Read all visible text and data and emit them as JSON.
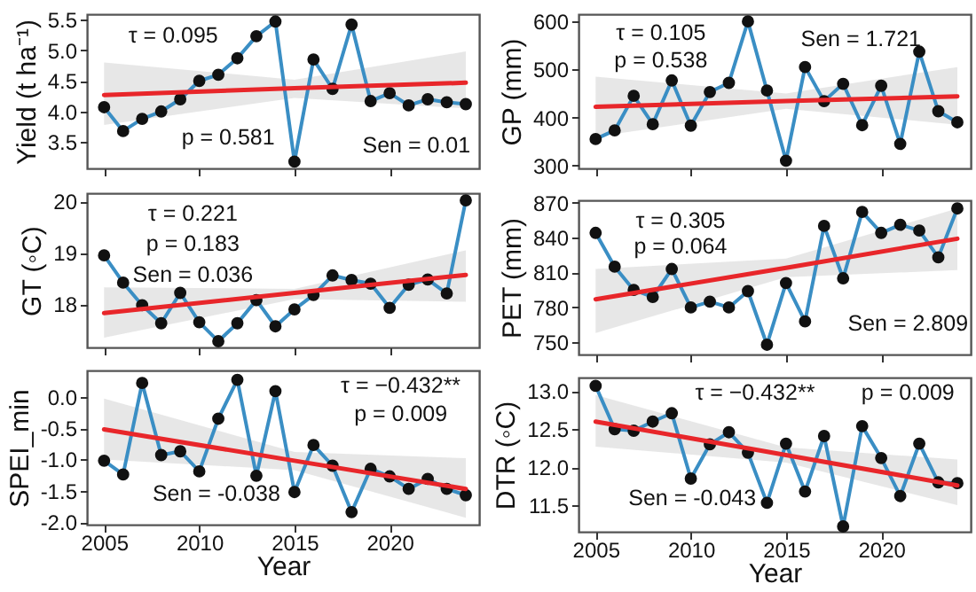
{
  "chart_data": [
    {
      "type": "line",
      "ylabel": "Yield (t ha⁻¹)",
      "x": [
        2005,
        2006,
        2007,
        2008,
        2009,
        2010,
        2011,
        2012,
        2013,
        2014,
        2015,
        2016,
        2017,
        2018,
        2019,
        2020,
        2021,
        2022,
        2023,
        2024
      ],
      "xlim": [
        2004.1,
        2024.7
      ],
      "xticks": [
        2005,
        2010,
        2015,
        2020
      ],
      "ylim": [
        3.07,
        5.59
      ],
      "yticks": [
        {
          "value": 3.5,
          "label": "3.5"
        },
        {
          "value": 4,
          "label": "4.0"
        },
        {
          "value": 4.5,
          "label": "4.5"
        },
        {
          "value": 5,
          "label": "5.0"
        },
        {
          "value": 5.5,
          "label": "5.5"
        }
      ],
      "tick_labels": "y",
      "marker": "circle",
      "annotations": [
        "τ = 0.095",
        "p = 0.581",
        "Sen = 0.01"
      ],
      "series": [
        {
          "color": "#3a8ec4",
          "values": [
            4.07,
            3.68,
            3.88,
            4.0,
            4.2,
            4.5,
            4.6,
            4.87,
            5.23,
            5.47,
            3.18,
            4.85,
            4.37,
            5.42,
            4.17,
            4.3,
            4.1,
            4.2,
            4.15,
            4.12
          ]
        },
        {
          "type": "line",
          "color": "#e8262a",
          "marker": "none",
          "x": [
            2005,
            2015,
            2024
          ],
          "values": [
            4.27,
            4.38,
            4.47
          ],
          "lower": [
            3.78,
            4.22,
            4.05
          ],
          "upper": [
            4.8,
            4.52,
            4.98
          ]
        }
      ]
    },
    {
      "type": "line",
      "ylabel": "GP (mm)",
      "x": [
        2005,
        2006,
        2007,
        2008,
        2009,
        2010,
        2011,
        2012,
        2013,
        2014,
        2015,
        2016,
        2017,
        2018,
        2019,
        2020,
        2021,
        2022,
        2023,
        2024
      ],
      "xlim": [
        2004.1,
        2024.7
      ],
      "xticks": [
        2005,
        2010,
        2015,
        2020
      ],
      "ylim": [
        294,
        615
      ],
      "yticks": [
        300,
        400,
        500,
        600
      ],
      "tick_labels": "y",
      "marker": "circle",
      "annotations": [
        "τ = 0.105",
        "p = 0.538",
        "Sen = 1.721"
      ],
      "series": [
        {
          "color": "#3a8ec4",
          "values": [
            355,
            373,
            445,
            386,
            477,
            383,
            453,
            472,
            600,
            456,
            310,
            505,
            434,
            470,
            384,
            466,
            345,
            537,
            413,
            390
          ]
        },
        {
          "type": "line",
          "color": "#e8262a",
          "marker": "none",
          "x": [
            2005,
            2015,
            2024
          ],
          "values": [
            422,
            434,
            444
          ],
          "lower": [
            360,
            418,
            385
          ],
          "upper": [
            485,
            450,
            505
          ]
        }
      ]
    },
    {
      "type": "line",
      "ylabel": "GT (◦C)",
      "x": [
        2005,
        2006,
        2007,
        2008,
        2009,
        2010,
        2011,
        2012,
        2013,
        2014,
        2015,
        2016,
        2017,
        2018,
        2019,
        2020,
        2021,
        2022,
        2023,
        2024
      ],
      "xlim": [
        2004.1,
        2024.7
      ],
      "xticks": [
        2005,
        2010,
        2015,
        2020
      ],
      "ylim": [
        17.16,
        20.16
      ],
      "yticks": [
        18,
        19,
        20
      ],
      "tick_labels": "y",
      "marker": "circle",
      "annotations": [
        "τ = 0.221",
        "p = 0.183",
        "Sen = 0.036"
      ],
      "series": [
        {
          "color": "#3a8ec4",
          "values": [
            18.95,
            18.42,
            17.98,
            17.63,
            18.22,
            17.65,
            17.28,
            17.63,
            18.08,
            17.57,
            17.9,
            18.18,
            18.56,
            18.47,
            18.4,
            17.93,
            18.38,
            18.48,
            18.21,
            20.02
          ]
        },
        {
          "type": "line",
          "color": "#e8262a",
          "marker": "none",
          "x": [
            2005,
            2015,
            2024
          ],
          "values": [
            17.83,
            18.22,
            18.57
          ],
          "lower": [
            17.35,
            18.1,
            18.05
          ],
          "upper": [
            18.33,
            18.3,
            19.05
          ]
        }
      ]
    },
    {
      "type": "line",
      "ylabel": "PET (mm)",
      "x": [
        2005,
        2006,
        2007,
        2008,
        2009,
        2010,
        2011,
        2012,
        2013,
        2014,
        2015,
        2016,
        2017,
        2018,
        2019,
        2020,
        2021,
        2022,
        2023,
        2024
      ],
      "xlim": [
        2004.1,
        2024.7
      ],
      "xticks": [
        2005,
        2010,
        2015,
        2020
      ],
      "ylim": [
        739.6,
        872
      ],
      "yticks": [
        750,
        780,
        810,
        840,
        870
      ],
      "tick_labels": "y",
      "marker": "circle",
      "annotations": [
        "τ = 0.305",
        "p = 0.064",
        "Sen = 2.809"
      ],
      "series": [
        {
          "color": "#3a8ec4",
          "values": [
            844,
            815,
            795,
            789,
            813,
            780,
            785,
            780,
            794,
            748,
            801,
            768,
            850,
            805,
            862,
            844,
            851,
            846,
            823,
            865
          ]
        },
        {
          "type": "line",
          "color": "#e8262a",
          "marker": "none",
          "x": [
            2005,
            2015,
            2024
          ],
          "values": [
            787,
            814,
            839
          ],
          "lower": [
            758,
            806,
            812
          ],
          "upper": [
            813,
            822,
            865
          ]
        }
      ]
    },
    {
      "type": "line",
      "xlabel": "Year",
      "ylabel": "SPEI_min",
      "x": [
        2005,
        2006,
        2007,
        2008,
        2009,
        2010,
        2011,
        2012,
        2013,
        2014,
        2015,
        2016,
        2017,
        2018,
        2019,
        2020,
        2021,
        2022,
        2023,
        2024
      ],
      "xlim": [
        2004.1,
        2024.7
      ],
      "xticks": [
        2005,
        2010,
        2015,
        2020
      ],
      "ylim": [
        -2.04,
        0.42
      ],
      "yticks": [
        {
          "value": -2,
          "label": "-2.0"
        },
        {
          "value": -1.5,
          "label": "-1.5"
        },
        {
          "value": -1,
          "label": "-1.0"
        },
        {
          "value": -0.5,
          "label": "-0.5"
        },
        {
          "value": 0,
          "label": "0.0"
        }
      ],
      "marker": "circle",
      "annotations": [
        "τ = −0.432**",
        "p = 0.009",
        "Sen = -0.038"
      ],
      "series": [
        {
          "color": "#3a8ec4",
          "values": [
            -1.02,
            -1.24,
            0.22,
            -0.93,
            -0.87,
            -1.19,
            -0.35,
            0.27,
            -1.26,
            0.09,
            -1.52,
            -0.77,
            -1.1,
            -1.84,
            -1.15,
            -1.27,
            -1.47,
            -1.31,
            -1.47,
            -1.57
          ]
        },
        {
          "type": "line",
          "color": "#e8262a",
          "marker": "none",
          "x": [
            2005,
            2015,
            2024
          ],
          "values": [
            -0.52,
            -1.02,
            -1.47
          ],
          "lower": [
            -1.0,
            -1.17,
            -1.93
          ],
          "upper": [
            -0.03,
            -0.88,
            -0.98
          ]
        }
      ]
    },
    {
      "type": "line",
      "xlabel": "Year",
      "ylabel": "DTR (◦C)",
      "x": [
        2005,
        2006,
        2007,
        2008,
        2009,
        2010,
        2011,
        2012,
        2013,
        2014,
        2015,
        2016,
        2017,
        2018,
        2019,
        2020,
        2021,
        2022,
        2023,
        2024
      ],
      "xlim": [
        2004.1,
        2024.7
      ],
      "xticks": [
        2005,
        2010,
        2015,
        2020
      ],
      "ylim": [
        11.15,
        13.18
      ],
      "yticks": [
        {
          "value": 11.5,
          "label": "11.5"
        },
        {
          "value": 12,
          "label": "12.0"
        },
        {
          "value": 12.5,
          "label": "12.5"
        },
        {
          "value": 13,
          "label": "13.0"
        }
      ],
      "marker": "circle",
      "annotations": [
        "τ = −0.432**",
        "p = 0.009",
        "Sen = -0.043"
      ],
      "series": [
        {
          "color": "#3a8ec4",
          "values": [
            13.07,
            12.5,
            12.48,
            12.6,
            12.71,
            11.85,
            12.3,
            12.46,
            12.19,
            11.53,
            12.31,
            11.68,
            12.41,
            11.22,
            12.54,
            12.12,
            11.62,
            12.31,
            11.8,
            11.79
          ]
        },
        {
          "type": "line",
          "color": "#e8262a",
          "marker": "none",
          "x": [
            2005,
            2015,
            2024
          ],
          "values": [
            12.6,
            12.16,
            11.76
          ],
          "lower": [
            12.27,
            12.06,
            11.5
          ],
          "upper": [
            12.95,
            12.26,
            12.1
          ]
        }
      ]
    }
  ]
}
